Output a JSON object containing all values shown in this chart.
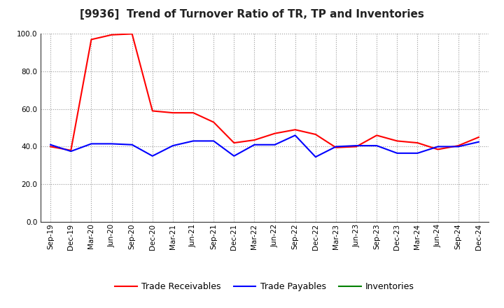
{
  "title": "[9936]  Trend of Turnover Ratio of TR, TP and Inventories",
  "x_labels": [
    "Sep-19",
    "Dec-19",
    "Mar-20",
    "Jun-20",
    "Sep-20",
    "Dec-20",
    "Mar-21",
    "Jun-21",
    "Sep-21",
    "Dec-21",
    "Mar-22",
    "Jun-22",
    "Sep-22",
    "Dec-22",
    "Mar-23",
    "Jun-23",
    "Sep-23",
    "Dec-23",
    "Mar-24",
    "Jun-24",
    "Sep-24",
    "Dec-24"
  ],
  "trade_receivables": [
    40.0,
    38.0,
    97.0,
    99.5,
    100.0,
    59.0,
    58.0,
    58.0,
    53.0,
    42.0,
    43.5,
    47.0,
    49.0,
    46.5,
    39.5,
    40.0,
    46.0,
    43.0,
    42.0,
    38.5,
    40.5,
    45.0
  ],
  "trade_payables": [
    41.0,
    37.5,
    41.5,
    41.5,
    41.0,
    35.0,
    40.5,
    43.0,
    43.0,
    35.0,
    41.0,
    41.0,
    46.0,
    34.5,
    40.0,
    40.5,
    40.5,
    36.5,
    36.5,
    40.0,
    40.0,
    42.5
  ],
  "inventories": [
    null,
    null,
    null,
    null,
    null,
    null,
    null,
    null,
    null,
    null,
    null,
    null,
    null,
    null,
    null,
    null,
    null,
    null,
    null,
    null,
    null,
    null
  ],
  "ylim": [
    0.0,
    100.0
  ],
  "yticks": [
    0.0,
    20.0,
    40.0,
    60.0,
    80.0,
    100.0
  ],
  "tr_color": "#ff0000",
  "tp_color": "#0000ff",
  "inv_color": "#008000",
  "background_color": "#ffffff",
  "grid_color": "#999999",
  "title_fontsize": 11,
  "legend_fontsize": 9,
  "tick_fontsize": 7.5
}
